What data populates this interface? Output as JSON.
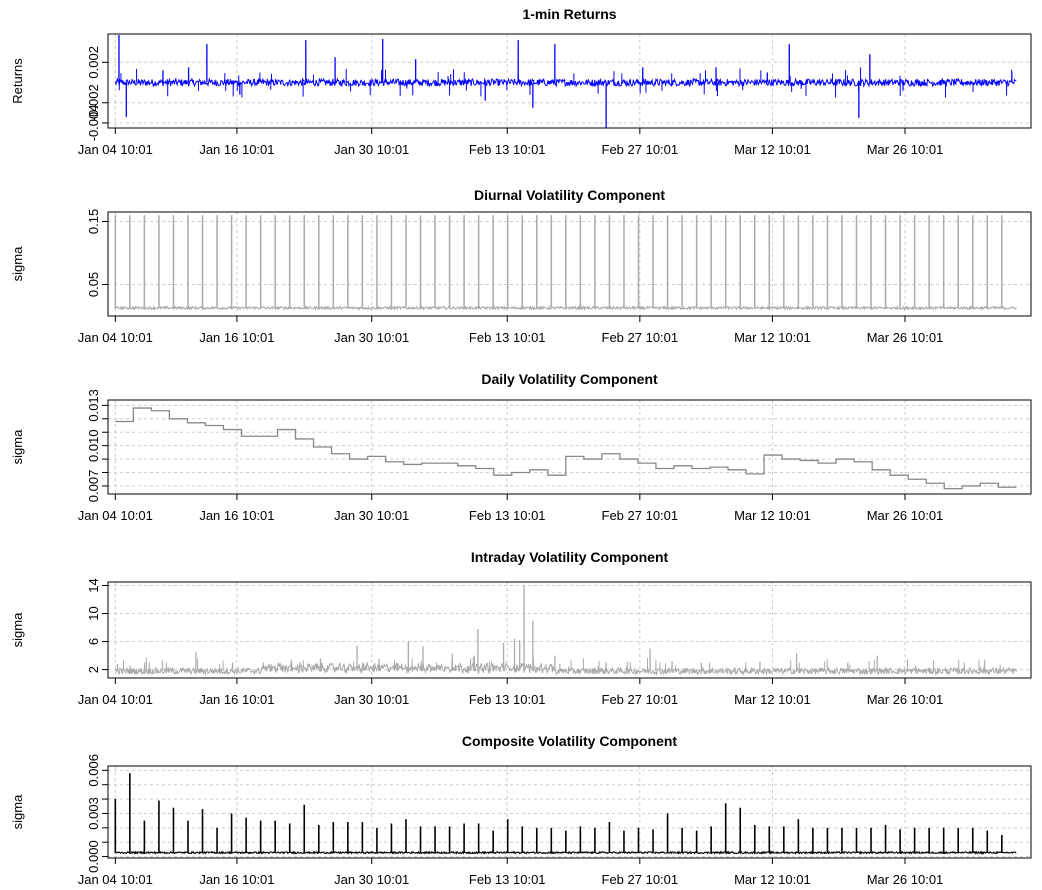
{
  "chart_data": [
    {
      "type": "line",
      "title": "1-min Returns",
      "ylabel": "Returns",
      "ylim": [
        -0.0045,
        0.0048
      ],
      "yticks": [
        -0.004,
        -0.002,
        0.002
      ],
      "ytick_labels": [
        "-0.004",
        "-0.002",
        "0.002"
      ],
      "grid": true,
      "color": "#0000ff",
      "series": [
        {
          "base": 0.0,
          "spikes": [
            {
              "x": 0.5,
              "y": 0.0047
            },
            {
              "x": 1.5,
              "y": -0.0034
            },
            {
              "x": 6.5,
              "y": 0.0012
            },
            {
              "x": 10,
              "y": 0.0015
            },
            {
              "x": 12.5,
              "y": 0.0038
            },
            {
              "x": 17,
              "y": -0.0012
            },
            {
              "x": 26,
              "y": 0.0042
            },
            {
              "x": 30,
              "y": 0.0025
            },
            {
              "x": 36.5,
              "y": 0.0043
            },
            {
              "x": 41,
              "y": 0.0023
            },
            {
              "x": 50.5,
              "y": -0.0018
            },
            {
              "x": 55,
              "y": 0.0042
            },
            {
              "x": 57,
              "y": -0.0025
            },
            {
              "x": 60,
              "y": 0.0038
            },
            {
              "x": 67,
              "y": -0.0045
            },
            {
              "x": 72,
              "y": 0.0015
            },
            {
              "x": 82,
              "y": 0.0015
            },
            {
              "x": 89,
              "y": 0.001
            },
            {
              "x": 92,
              "y": 0.0038
            },
            {
              "x": 101.5,
              "y": -0.0035
            },
            {
              "x": 103,
              "y": 0.0028
            }
          ]
        }
      ]
    },
    {
      "type": "line",
      "title": "Diurnal Volatility Component",
      "ylabel": "sigma",
      "ylim": [
        0.0,
        0.165
      ],
      "yticks": [
        0.05,
        0.15
      ],
      "ytick_labels": [
        "0.05",
        "0.15"
      ],
      "grid": true,
      "color": "#aaaaaa",
      "series": [
        {
          "base": 0.012,
          "daily_peak": 0.16,
          "days": 62
        }
      ]
    },
    {
      "type": "step",
      "title": "Daily Volatility Component",
      "ylabel": "sigma",
      "ylim": [
        0.0064,
        0.0134
      ],
      "yticks": [
        0.007,
        0.008,
        0.009,
        0.01,
        0.011,
        0.012,
        0.013
      ],
      "ytick_labels": [
        "0.007",
        "",
        "",
        "0.010",
        "",
        "",
        "0.013"
      ],
      "grid": true,
      "color": "#888888",
      "series": [
        {
          "values": [
            0.0118,
            0.0128,
            0.0126,
            0.012,
            0.0117,
            0.0115,
            0.0112,
            0.0107,
            0.0107,
            0.0112,
            0.0105,
            0.0099,
            0.0094,
            0.009,
            0.0092,
            0.0088,
            0.0086,
            0.0087,
            0.0087,
            0.0085,
            0.0083,
            0.0078,
            0.008,
            0.0082,
            0.0078,
            0.0092,
            0.009,
            0.0094,
            0.009,
            0.0087,
            0.0083,
            0.0085,
            0.0083,
            0.0084,
            0.0082,
            0.0079,
            0.0093,
            0.009,
            0.0089,
            0.0087,
            0.009,
            0.0088,
            0.0082,
            0.0078,
            0.0075,
            0.0072,
            0.0068,
            0.007,
            0.0072,
            0.0069
          ]
        }
      ]
    },
    {
      "type": "line",
      "title": "Intraday Volatility Component",
      "ylabel": "sigma",
      "ylim": [
        0.8,
        14.5
      ],
      "yticks": [
        2,
        6,
        10,
        14
      ],
      "ytick_labels": [
        "2",
        "6",
        "10",
        "14"
      ],
      "grid": true,
      "color": "#aaaaaa",
      "series": [
        {
          "base": 1.8,
          "spikes": [
            {
              "x": 0.3,
              "y": 2.8
            },
            {
              "x": 4,
              "y": 3.0
            },
            {
              "x": 11,
              "y": 4.5
            },
            {
              "x": 16,
              "y": 3.0
            },
            {
              "x": 24,
              "y": 3.4
            },
            {
              "x": 28,
              "y": 3.6
            },
            {
              "x": 33,
              "y": 5.4
            },
            {
              "x": 36,
              "y": 3.5
            },
            {
              "x": 40,
              "y": 6.0
            },
            {
              "x": 42,
              "y": 5.3
            },
            {
              "x": 46,
              "y": 4.3
            },
            {
              "x": 49,
              "y": 4.0
            },
            {
              "x": 49.5,
              "y": 7.8
            },
            {
              "x": 53,
              "y": 5.8
            },
            {
              "x": 54.5,
              "y": 6.4
            },
            {
              "x": 55.2,
              "y": 6.2
            },
            {
              "x": 55.8,
              "y": 14.0
            },
            {
              "x": 57,
              "y": 9.0
            },
            {
              "x": 60,
              "y": 4.0
            },
            {
              "x": 67,
              "y": 3.0
            },
            {
              "x": 73,
              "y": 5.0
            },
            {
              "x": 76,
              "y": 3.2
            },
            {
              "x": 80,
              "y": 3.0
            },
            {
              "x": 88,
              "y": 3.1
            },
            {
              "x": 93,
              "y": 4.3
            },
            {
              "x": 100,
              "y": 3.0
            },
            {
              "x": 104,
              "y": 4.0
            }
          ]
        }
      ]
    },
    {
      "type": "line",
      "title": "Composite Volatility Component",
      "ylabel": "sigma",
      "ylim": [
        -0.0001,
        0.0063
      ],
      "yticks": [
        0.0,
        0.001,
        0.002,
        0.003,
        0.004,
        0.005,
        0.006
      ],
      "ytick_labels": [
        "0.000",
        "",
        "",
        "0.003",
        "",
        "",
        "0.006"
      ],
      "grid": true,
      "color": "#000000",
      "series": [
        {
          "base": 0.00025,
          "daily_peaks": [
            0.004,
            0.0058,
            0.0025,
            0.0039,
            0.0034,
            0.0025,
            0.0033,
            0.002,
            0.003,
            0.0027,
            0.0025,
            0.0025,
            0.0023,
            0.0036,
            0.0022,
            0.0024,
            0.0024,
            0.0024,
            0.002,
            0.0023,
            0.0026,
            0.0021,
            0.0021,
            0.0021,
            0.0023,
            0.0023,
            0.0018,
            0.0026,
            0.0021,
            0.002,
            0.002,
            0.0018,
            0.0021,
            0.002,
            0.0024,
            0.0018,
            0.002,
            0.0019,
            0.003,
            0.002,
            0.0018,
            0.0021,
            0.0037,
            0.0034,
            0.0022,
            0.0021,
            0.0021,
            0.0026,
            0.002,
            0.002,
            0.002,
            0.002,
            0.002,
            0.0022,
            0.0019,
            0.002,
            0.002,
            0.002,
            0.002,
            0.002,
            0.0018,
            0.0015
          ]
        }
      ]
    }
  ],
  "x_axis": {
    "ticks": [
      {
        "label": "Jan 04 10:01",
        "x": 0
      },
      {
        "label": "Jan 16 10:01",
        "x": 16.6
      },
      {
        "label": "Jan 30 10:01",
        "x": 35.0
      },
      {
        "label": "Feb 13 10:01",
        "x": 53.5
      },
      {
        "label": "Feb 27 10:01",
        "x": 71.6
      },
      {
        "label": "Mar 12 10:01",
        "x": 89.7
      },
      {
        "label": "Mar 26 10:01",
        "x": 107.8
      }
    ],
    "xlim": [
      -1,
      125
    ],
    "data_range": [
      0,
      123
    ]
  }
}
